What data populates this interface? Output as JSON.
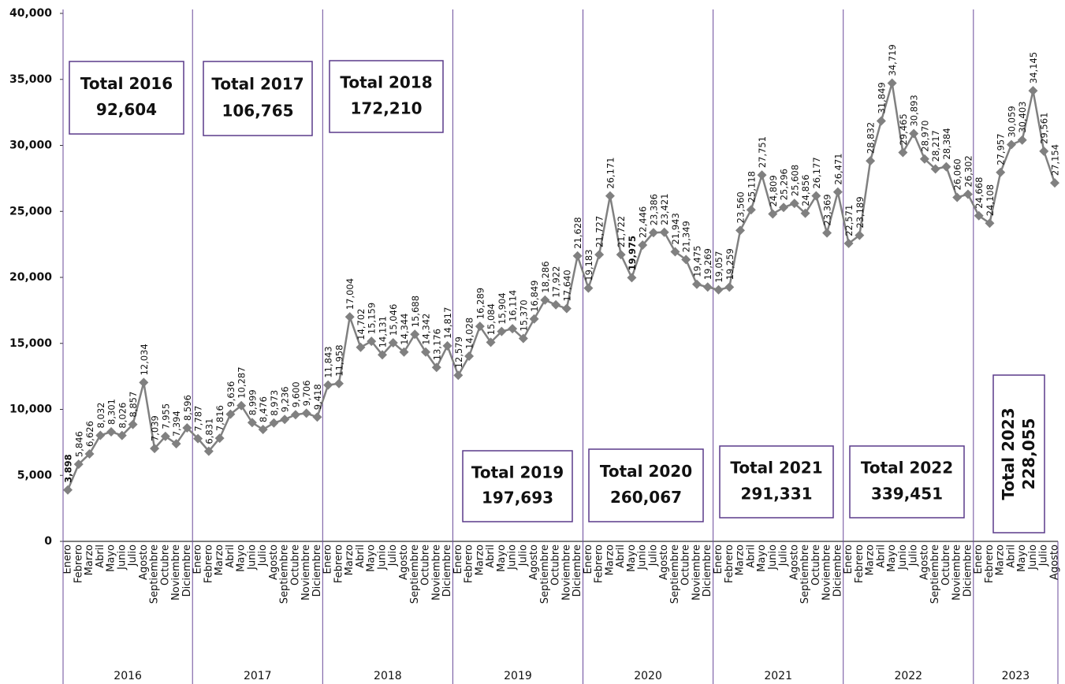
{
  "chart_data": {
    "type": "line",
    "groups": [
      {
        "label": "2016",
        "categories": [
          "Enero",
          "Febrero",
          "Marzo",
          "Abril",
          "Mayo",
          "Junio",
          "Julio",
          "Agosto",
          "Septiembre",
          "Octubre",
          "Noviembre",
          "Diciembre"
        ]
      },
      {
        "label": "2017",
        "categories": [
          "Enero",
          "Febrero",
          "Marzo",
          "Abril",
          "Mayo",
          "Junio",
          "Julio",
          "Agosto",
          "Septiembre",
          "Octubre",
          "Noviembre",
          "Diciembre"
        ]
      },
      {
        "label": "2018",
        "categories": [
          "Enero",
          "Febrero",
          "Marzo",
          "Abril",
          "Mayo",
          "Junio",
          "Julio",
          "Agosto",
          "Septiembre",
          "Octubre",
          "Noviembre",
          "Diciembre"
        ]
      },
      {
        "label": "2019",
        "categories": [
          "Enero",
          "Febrero",
          "Marzo",
          "Abril",
          "Mayo",
          "Junio",
          "Julio",
          "Agosto",
          "Septiembre",
          "Octubre",
          "Noviembre",
          "Diciembre"
        ]
      },
      {
        "label": "2020",
        "categories": [
          "Enero",
          "Febrero",
          "Marzo",
          "Abril",
          "Mayo",
          "Junio",
          "Julio",
          "Agosto",
          "Septiembre",
          "Octubre",
          "Noviembre",
          "Diciembre"
        ]
      },
      {
        "label": "2021",
        "categories": [
          "Enero",
          "Febrero",
          "Marzo",
          "Abril",
          "Mayo",
          "Junio",
          "Julio",
          "Agosto",
          "Septiembre",
          "Octubre",
          "Noviembre",
          "Diciembre"
        ]
      },
      {
        "label": "2022",
        "categories": [
          "Enero",
          "Febrero",
          "Marzo",
          "Abril",
          "Mayo",
          "Junio",
          "Julio",
          "Agosto",
          "Septiembre",
          "Octubre",
          "Noviembre",
          "Diciembre"
        ]
      },
      {
        "label": "2023",
        "categories": [
          "Enero",
          "Febrero",
          "Marzo",
          "Abril",
          "Mayo",
          "Junio",
          "Julio",
          "Agosto"
        ]
      }
    ],
    "color": "#808080",
    "values": [
      3898,
      5846,
      6626,
      8032,
      8301,
      8026,
      8857,
      12034,
      7039,
      7955,
      7394,
      8596,
      7787,
      6831,
      7816,
      9636,
      10287,
      8999,
      8476,
      8973,
      9236,
      9600,
      9706,
      9418,
      11843,
      11958,
      17004,
      14702,
      15159,
      14131,
      15046,
      14344,
      15688,
      14342,
      13176,
      14817,
      12579,
      14028,
      16289,
      15084,
      15904,
      16114,
      15370,
      16849,
      18286,
      17922,
      17640,
      21628,
      19183,
      21727,
      26171,
      21722,
      19975,
      22446,
      23386,
      23421,
      21943,
      21349,
      19475,
      19269,
      19057,
      19259,
      23560,
      25118,
      27751,
      24809,
      25296,
      25608,
      24856,
      26177,
      23369,
      26471,
      22571,
      23189,
      28832,
      31849,
      34719,
      29465,
      30893,
      28970,
      28217,
      28384,
      26060,
      26302,
      24668,
      24108,
      27957,
      30059,
      30403,
      34145,
      29561,
      27154
    ],
    "value_labels": [
      "3,898",
      "5,846",
      "6,626",
      "8,032",
      "8,301",
      "8,026",
      "8,857",
      "12,034",
      "7,039",
      "7,955",
      "7,394",
      "8,596",
      "7,787",
      "6,831",
      "7,816",
      "9,636",
      "10,287",
      "8,999",
      "8,476",
      "8,973",
      "9,236",
      "9,600",
      "9,706",
      "9,418",
      "11,843",
      "11,958",
      "17,004",
      "14,702",
      "15,159",
      "14,131",
      "15,046",
      "14,344",
      "15,688",
      "14,342",
      "13,176",
      "14,817",
      "12,579",
      "14,028",
      "16,289",
      "15,084",
      "15,904",
      "16,114",
      "15,370",
      "16,849",
      "18,286",
      "17,922",
      "17,640",
      "21,628",
      "19,183",
      "21,727",
      "26,171",
      "21,722",
      "19,975",
      "22,446",
      "23,386",
      "23,421",
      "21,943",
      "21,349",
      "19,475",
      "19,269",
      "19,057",
      "19,259",
      "23,560",
      "25,118",
      "27,751",
      "24,809",
      "25,296",
      "25,608",
      "24,856",
      "26,177",
      "23,369",
      "26,471",
      "22,571",
      "23,189",
      "28,832",
      "31,849",
      "34,719",
      "29,465",
      "30,893",
      "28,970",
      "28,217",
      "28,384",
      "26,060",
      "26,302",
      "24,668",
      "24,108",
      "27,957",
      "30,059",
      "30,403",
      "34,145",
      "29,561",
      "27,154"
    ],
    "label_color": "#111111",
    "highlight_labels": [
      {
        "index": 0,
        "color": "#1a9a3a"
      },
      {
        "index": 52,
        "color": "#e0201c"
      }
    ],
    "ylim": [
      0,
      40000
    ],
    "yticks": [
      0,
      {
        "value": 5000,
        "label": "5,000"
      },
      {
        "value": 10000,
        "label": "10,000"
      },
      {
        "value": 15000,
        "label": "15,000"
      },
      {
        "value": 20000,
        "label": "20,000"
      },
      {
        "value": 25000,
        "label": "25,000"
      },
      {
        "value": 30000,
        "label": "30,000"
      },
      {
        "value": 35000,
        "label": "35,000"
      },
      {
        "value": 40000,
        "label": "40,000"
      }
    ],
    "grid": false,
    "annotations": [
      {
        "title": "Total 2016",
        "value": "92,604"
      },
      {
        "title": "Total 2017",
        "value": "106,765"
      },
      {
        "title": "Total 2018",
        "value": "172,210"
      },
      {
        "title": "Total 2019",
        "value": "197,693"
      },
      {
        "title": "Total 2020",
        "value": "260,067"
      },
      {
        "title": "Total 2021",
        "value": "291,331"
      },
      {
        "title": "Total 2022",
        "value": "339,451"
      },
      {
        "title": "Total 2023",
        "value": "228,055"
      }
    ],
    "separator_color": "#6a4a9a"
  }
}
